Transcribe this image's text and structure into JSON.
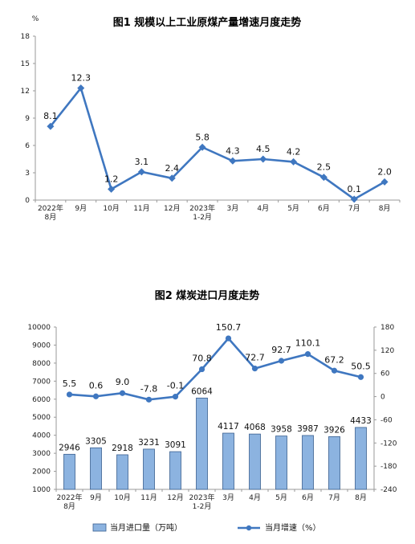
{
  "chart_data": [
    {
      "type": "line",
      "title": "图1  规模以上工业原煤产量增速月度走势",
      "ylabel": "%",
      "ylim": [
        0,
        18
      ],
      "yticks": [
        0,
        3,
        6,
        9,
        12,
        15,
        18
      ],
      "grid": false,
      "categories": [
        [
          "2022年",
          "8月"
        ],
        [
          "9月"
        ],
        [
          "10月"
        ],
        [
          "11月"
        ],
        [
          "12月"
        ],
        [
          "2023年",
          "1-2月"
        ],
        [
          "3月"
        ],
        [
          "4月"
        ],
        [
          "5月"
        ],
        [
          "6月"
        ],
        [
          "7月"
        ],
        [
          "8月"
        ]
      ],
      "series": [
        {
          "values": [
            8.1,
            12.3,
            1.2,
            3.1,
            2.4,
            5.8,
            4.3,
            4.5,
            4.2,
            2.5,
            0.1,
            2.0
          ],
          "labels": [
            "8.1",
            "12.3",
            "1.2",
            "3.1",
            "2.4",
            "5.8",
            "4.3",
            "4.5",
            "4.2",
            "2.5",
            "0.1",
            "2.0"
          ]
        }
      ],
      "colors": {
        "line": "#3f77c0"
      }
    },
    {
      "type": "bar+line",
      "title": "图2  煤炭进口月度走势",
      "ylim_left": [
        1000,
        10000
      ],
      "yticks_left": [
        1000,
        2000,
        3000,
        4000,
        5000,
        6000,
        7000,
        8000,
        9000,
        10000
      ],
      "ylim_right": [
        -240,
        180
      ],
      "yticks_right": [
        -240,
        -180,
        -120,
        -60,
        0,
        60,
        120,
        180
      ],
      "grid": false,
      "categories": [
        [
          "2022年",
          "8月"
        ],
        [
          "9月"
        ],
        [
          "10月"
        ],
        [
          "11月"
        ],
        [
          "12月"
        ],
        [
          "2023年",
          "1-2月"
        ],
        [
          "3月"
        ],
        [
          "4月"
        ],
        [
          "5月"
        ],
        [
          "6月"
        ],
        [
          "7月"
        ],
        [
          "8月"
        ]
      ],
      "series": [
        {
          "name": "当月进口量（万吨）",
          "type": "bar",
          "axis": "left",
          "values": [
            2946,
            3305,
            2918,
            3231,
            3091,
            6064,
            4117,
            4068,
            3958,
            3987,
            3926,
            4433
          ],
          "labels": [
            "2946",
            "3305",
            "2918",
            "3231",
            "3091",
            "6064",
            "4117",
            "4068",
            "3958",
            "3987",
            "3926",
            "4433"
          ]
        },
        {
          "name": "当月增速（%）",
          "type": "line",
          "axis": "right",
          "values": [
            5.5,
            0.6,
            9.0,
            -7.8,
            -0.1,
            70.8,
            150.7,
            72.7,
            92.7,
            110.1,
            67.2,
            50.5
          ],
          "labels": [
            "5.5",
            "0.6",
            "9.0",
            "-7.8",
            "-0.1",
            "70.8",
            "150.7",
            "72.7",
            "92.7",
            "110.1",
            "67.2",
            "50.5"
          ]
        }
      ],
      "legend": "bottom",
      "colors": {
        "bar": "#8cb3e0",
        "bar_edge": "#3a5f8f",
        "line": "#3f77c0"
      }
    }
  ]
}
